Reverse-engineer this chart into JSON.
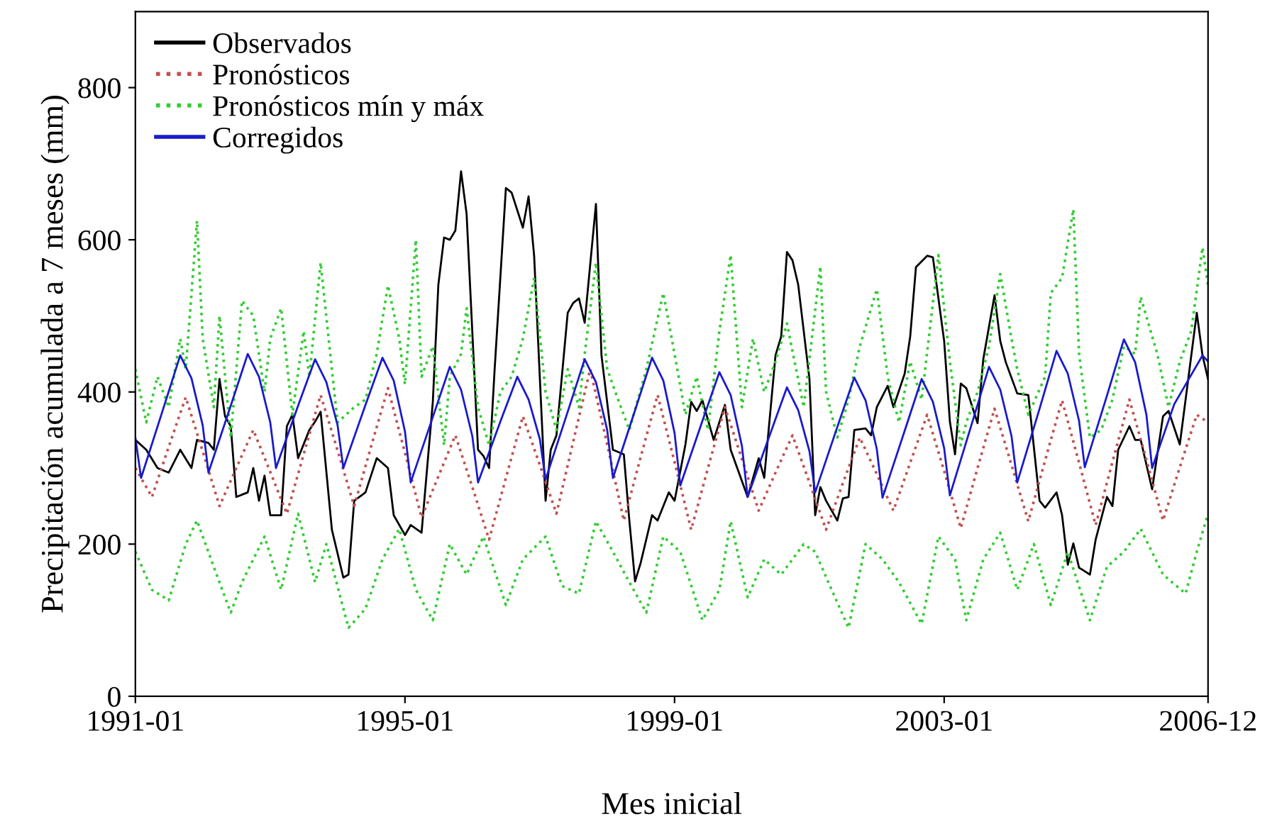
{
  "chart_data": {
    "type": "line",
    "xlabel": "Mes inicial",
    "ylabel": "Precipitación acumulada a 7 meses (mm)",
    "xlim": [
      "1991-01",
      "2006-12"
    ],
    "xticks": [
      "1991-01",
      "1995-01",
      "1999-01",
      "2003-01",
      "2006-12"
    ],
    "ylim": [
      0,
      900
    ],
    "yticks": [
      0,
      200,
      400,
      600,
      800
    ],
    "grid": false,
    "legend": "top left",
    "series": [
      {
        "name": "Observados",
        "color": "#000000",
        "line_style": "solid",
        "x": [
          "1991-01",
          "1991-03",
          "1991-05",
          "1991-07",
          "1991-09",
          "1991-11",
          "1991-12",
          "1992-02",
          "1992-03",
          "1992-04",
          "1992-05",
          "1992-06",
          "1992-07",
          "1992-09",
          "1992-10",
          "1992-11",
          "1992-12",
          "1993-01",
          "1993-03",
          "1993-04",
          "1993-05",
          "1993-06",
          "1993-08",
          "1993-09",
          "1993-10",
          "1993-12",
          "1994-02",
          "1994-03",
          "1994-04",
          "1994-06",
          "1994-08",
          "1994-10",
          "1994-11",
          "1995-01",
          "1995-02",
          "1995-04",
          "1995-06",
          "1995-07",
          "1995-08",
          "1995-09",
          "1995-10",
          "1995-11",
          "1995-12",
          "1996-02",
          "1996-03",
          "1996-04",
          "1996-05",
          "1996-07",
          "1996-08",
          "1996-10",
          "1996-11",
          "1996-12",
          "1997-02",
          "1997-03",
          "1997-04",
          "1997-06",
          "1997-07",
          "1997-08",
          "1997-09",
          "1997-11",
          "1997-12",
          "1998-02",
          "1998-04",
          "1998-05",
          "1998-06",
          "1998-07",
          "1998-09",
          "1998-10",
          "1998-12",
          "1999-01",
          "1999-03",
          "1999-04",
          "1999-05",
          "1999-06",
          "1999-08",
          "1999-10",
          "1999-11",
          "2000-02",
          "2000-04",
          "2000-05",
          "2000-07",
          "2000-08",
          "2000-09",
          "2000-10",
          "2000-11",
          "2001-01",
          "2001-02",
          "2001-03",
          "2001-04",
          "2001-06",
          "2001-07",
          "2001-08",
          "2001-09",
          "2001-11",
          "2001-12",
          "2002-01",
          "2002-03",
          "2002-04",
          "2002-06",
          "2002-07",
          "2002-08",
          "2002-10",
          "2002-11",
          "2003-01",
          "2003-02",
          "2003-03",
          "2003-04",
          "2003-05",
          "2003-07",
          "2003-08",
          "2003-10",
          "2003-11",
          "2003-12",
          "2004-02",
          "2004-04",
          "2004-06",
          "2004-07",
          "2004-09",
          "2004-10",
          "2004-11",
          "2004-12",
          "2005-01",
          "2005-03",
          "2005-04",
          "2005-06",
          "2005-07",
          "2005-08",
          "2005-10",
          "2005-11",
          "2005-12",
          "2006-02",
          "2006-04",
          "2006-05",
          "2006-07",
          "2006-10",
          "2006-11",
          "2006-12"
        ],
        "values": [
          337,
          324,
          300,
          294,
          324,
          300,
          337,
          333,
          324,
          417,
          368,
          355,
          262,
          268,
          300,
          257,
          290,
          238,
          238,
          355,
          370,
          313,
          350,
          361,
          374,
          219,
          156,
          160,
          257,
          268,
          313,
          300,
          238,
          212,
          225,
          215,
          387,
          541,
          603,
          600,
          612,
          690,
          634,
          324,
          316,
          300,
          430,
          668,
          662,
          616,
          657,
          579,
          257,
          324,
          343,
          504,
          517,
          523,
          491,
          647,
          448,
          324,
          318,
          231,
          151,
          175,
          238,
          231,
          268,
          257,
          331,
          387,
          375,
          389,
          337,
          383,
          324,
          262,
          313,
          287,
          448,
          473,
          584,
          573,
          541,
          417,
          238,
          275,
          257,
          231,
          260,
          262,
          350,
          352,
          343,
          380,
          408,
          380,
          424,
          473,
          564,
          579,
          577,
          467,
          361,
          318,
          411,
          405,
          359,
          443,
          527,
          467,
          439,
          398,
          396,
          257,
          248,
          268,
          238,
          173,
          201,
          169,
          160,
          206,
          262,
          250,
          324,
          355,
          337,
          337,
          272,
          368,
          375,
          331,
          504,
          448,
          417
        ]
      },
      {
        "name": "Pronósticos",
        "color": "#c0504d",
        "line_style": "dotted",
        "x": [
          "1991-01",
          "1991-04",
          "1991-07",
          "1991-10",
          "1992-01",
          "1992-04",
          "1992-07",
          "1992-10",
          "1993-01",
          "1993-04",
          "1993-07",
          "1993-10",
          "1994-01",
          "1994-04",
          "1994-07",
          "1994-10",
          "1995-01",
          "1995-04",
          "1995-07",
          "1995-10",
          "1996-01",
          "1996-04",
          "1996-07",
          "1996-10",
          "1997-01",
          "1997-04",
          "1997-07",
          "1997-10",
          "1998-01",
          "1998-04",
          "1998-07",
          "1998-10",
          "1999-01",
          "1999-04",
          "1999-07",
          "1999-10",
          "2000-01",
          "2000-04",
          "2000-07",
          "2000-10",
          "2001-01",
          "2001-04",
          "2001-07",
          "2001-10",
          "2002-01",
          "2002-04",
          "2002-07",
          "2002-10",
          "2003-01",
          "2003-04",
          "2003-07",
          "2003-10",
          "2004-01",
          "2004-04",
          "2004-07",
          "2004-10",
          "2005-01",
          "2005-04",
          "2005-07",
          "2005-10",
          "2006-01",
          "2006-04",
          "2006-07",
          "2006-10",
          "2006-12"
        ],
        "values": [
          300,
          262,
          328,
          393,
          322,
          250,
          300,
          350,
          295,
          240,
          318,
          396,
          323,
          250,
          328,
          405,
          320,
          235,
          289,
          343,
          275,
          206,
          287,
          368,
          304,
          240,
          335,
          430,
          331,
          231,
          314,
          396,
          308,
          219,
          300,
          380,
          312,
          244,
          294,
          343,
          281,
          219,
          280,
          340,
          292,
          244,
          307,
          370,
          296,
          221,
          300,
          378,
          304,
          230,
          310,
          389,
          307,
          225,
          308,
          390,
          311,
          231,
          301,
          370,
          360
        ]
      },
      {
        "name": "Pronósticos mín y máx",
        "color": "#33cc33",
        "line_style": "dotted",
        "x": [
          "1991-01",
          "1991-04",
          "1991-07",
          "1991-10",
          "1991-12",
          "1992-03",
          "1992-06",
          "1992-08",
          "1992-12",
          "1993-03",
          "1993-06",
          "1993-09",
          "1993-11",
          "1994-03",
          "1994-06",
          "1994-09",
          "1994-12",
          "1995-03",
          "1995-06",
          "1995-09",
          "1995-12",
          "1996-03",
          "1996-07",
          "1996-10",
          "1997-02",
          "1997-05",
          "1997-08",
          "1997-11",
          "1998-02",
          "1998-05",
          "1998-08",
          "1998-11",
          "1999-02",
          "1999-06",
          "1999-09",
          "1999-11",
          "2000-02",
          "2000-05",
          "2000-08",
          "2000-12",
          "2001-02",
          "2001-05",
          "2001-08",
          "2001-11",
          "2002-02",
          "2002-05",
          "2002-09",
          "2002-12",
          "2003-03",
          "2003-05",
          "2003-08",
          "2003-11",
          "2004-02",
          "2004-05",
          "2004-08",
          "2004-11",
          "2005-03",
          "2005-06",
          "2005-09",
          "2005-12",
          "2006-04",
          "2006-08",
          "2006-10",
          "2006-12"
        ],
        "values": [
          190,
          140,
          126,
          200,
          231,
          170,
          110,
          150,
          210,
          140,
          240,
          150,
          200,
          90,
          115,
          180,
          220,
          140,
          100,
          200,
          160,
          210,
          120,
          180,
          210,
          145,
          135,
          230,
          190,
          150,
          110,
          210,
          190,
          100,
          140,
          230,
          130,
          180,
          160,
          200,
          190,
          140,
          90,
          200,
          180,
          150,
          95,
          210,
          180,
          100,
          180,
          215,
          140,
          200,
          120,
          190,
          100,
          170,
          190,
          220,
          160,
          135,
          190,
          240
        ]
      },
      {
        "color": "#33cc33",
        "line_style": "dotted",
        "x": [
          "1991-01",
          "1991-03",
          "1991-05",
          "1991-07",
          "1991-09",
          "1991-10",
          "1991-12",
          "1992-01",
          "1992-03",
          "1992-04",
          "1992-06",
          "1992-08",
          "1992-10",
          "1992-12",
          "1993-01",
          "1993-03",
          "1993-05",
          "1993-07",
          "1993-08",
          "1993-10",
          "1993-12",
          "1994-01",
          "1994-04",
          "1994-06",
          "1994-08",
          "1994-10",
          "1994-12",
          "1995-01",
          "1995-03",
          "1995-04",
          "1995-06",
          "1995-08",
          "1995-09",
          "1995-11",
          "1995-12",
          "1996-02",
          "1996-04",
          "1996-06",
          "1996-08",
          "1996-10",
          "1996-12",
          "1997-02",
          "1997-04",
          "1997-06",
          "1997-08",
          "1997-09",
          "1997-11",
          "1998-01",
          "1998-03",
          "1998-05",
          "1998-08",
          "1998-11",
          "1999-01",
          "1999-03",
          "1999-05",
          "1999-07",
          "1999-09",
          "1999-11",
          "2000-01",
          "2000-03",
          "2000-05",
          "2000-07",
          "2000-09",
          "2000-12",
          "2001-03",
          "2001-04",
          "2001-06",
          "2001-08",
          "2001-10",
          "2002-01",
          "2002-03",
          "2002-05",
          "2002-07",
          "2002-09",
          "2002-12",
          "2003-02",
          "2003-04",
          "2003-05",
          "2003-07",
          "2003-09",
          "2003-11",
          "2004-01",
          "2004-02",
          "2004-04",
          "2004-07",
          "2004-08",
          "2004-10",
          "2004-12",
          "2005-01",
          "2005-03",
          "2005-05",
          "2005-07",
          "2005-09",
          "2005-11",
          "2005-12",
          "2006-03",
          "2006-05",
          "2006-07",
          "2006-09",
          "2006-11",
          "2006-12"
        ],
        "values": [
          430,
          360,
          420,
          380,
          470,
          430,
          625,
          470,
          380,
          500,
          340,
          520,
          500,
          400,
          470,
          510,
          370,
          480,
          420,
          570,
          430,
          360,
          380,
          390,
          450,
          540,
          470,
          410,
          600,
          420,
          460,
          330,
          420,
          450,
          510,
          380,
          330,
          400,
          420,
          470,
          550,
          400,
          350,
          430,
          380,
          450,
          570,
          430,
          390,
          350,
          430,
          530,
          450,
          370,
          420,
          350,
          480,
          580,
          380,
          470,
          400,
          440,
          490,
          380,
          565,
          400,
          340,
          390,
          460,
          535,
          420,
          360,
          440,
          390,
          580,
          440,
          330,
          360,
          400,
          460,
          555,
          470,
          430,
          370,
          420,
          530,
          550,
          640,
          450,
          340,
          350,
          390,
          460,
          450,
          525,
          450,
          380,
          440,
          480,
          590,
          540
        ]
      },
      {
        "name": "Corregidos",
        "color": "#1a1acc",
        "line_style": "solid",
        "x": [
          "1991-01",
          "1991-02",
          "1991-06",
          "1991-09",
          "1991-11",
          "1992-01",
          "1992-02",
          "1992-06",
          "1992-09",
          "1992-11",
          "1993-01",
          "1993-02",
          "1993-06",
          "1993-09",
          "1993-11",
          "1994-01",
          "1994-02",
          "1994-06",
          "1994-09",
          "1994-11",
          "1995-01",
          "1995-02",
          "1995-06",
          "1995-09",
          "1995-11",
          "1996-01",
          "1996-02",
          "1996-06",
          "1996-09",
          "1996-11",
          "1997-01",
          "1997-02",
          "1997-06",
          "1997-09",
          "1997-11",
          "1998-01",
          "1998-02",
          "1998-06",
          "1998-09",
          "1998-11",
          "1999-01",
          "1999-02",
          "1999-06",
          "1999-09",
          "1999-11",
          "2000-01",
          "2000-02",
          "2000-06",
          "2000-09",
          "2000-11",
          "2001-01",
          "2001-02",
          "2001-06",
          "2001-09",
          "2001-11",
          "2002-01",
          "2002-02",
          "2002-06",
          "2002-09",
          "2002-11",
          "2003-01",
          "2003-02",
          "2003-06",
          "2003-09",
          "2003-11",
          "2004-01",
          "2004-02",
          "2004-06",
          "2004-09",
          "2004-11",
          "2005-01",
          "2005-02",
          "2005-06",
          "2005-09",
          "2005-11",
          "2006-01",
          "2006-02",
          "2006-06",
          "2006-11",
          "2006-12"
        ],
        "values": [
          340,
          287,
          378,
          448,
          418,
          356,
          294,
          382,
          450,
          420,
          360,
          300,
          382,
          443,
          413,
          356,
          300,
          383,
          445,
          415,
          348,
          281,
          367,
          433,
          403,
          342,
          281,
          361,
          420,
          390,
          338,
          285,
          374,
          443,
          413,
          350,
          287,
          376,
          445,
          415,
          346,
          277,
          362,
          426,
          396,
          329,
          262,
          344,
          406,
          376,
          322,
          268,
          354,
          419,
          389,
          325,
          261,
          349,
          417,
          387,
          326,
          264,
          359,
          433,
          403,
          342,
          281,
          378,
          454,
          424,
          362,
          301,
          395,
          469,
          439,
          370,
          300,
          384,
          448,
          440
        ]
      }
    ]
  }
}
